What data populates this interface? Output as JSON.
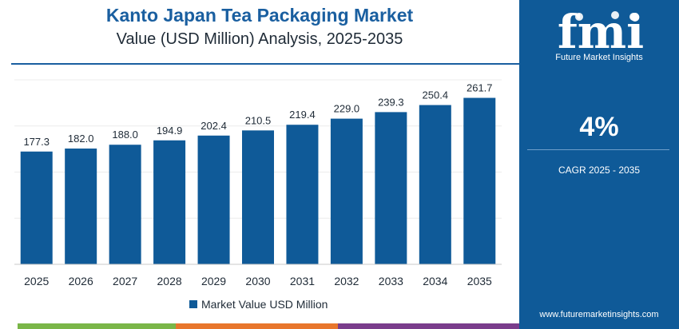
{
  "header": {
    "title": "Kanto Japan Tea Packaging Market",
    "subtitle": "Value (USD Million) Analysis, 2025-2035"
  },
  "sidebar": {
    "logo_text": "fmi",
    "logo_tagline": "Future Market Insights",
    "cagr_value": "4%",
    "cagr_label": "CAGR 2025 - 2035",
    "website": "www.futuremarketinsights.com"
  },
  "colors": {
    "bar": "#0f5a98",
    "title": "#1a5fa0",
    "panel": "#0f5a98",
    "band_green": "#7ab648",
    "band_orange": "#e8762c",
    "band_purple": "#7a3d8c"
  },
  "chart_data": {
    "type": "bar",
    "title": "Kanto Japan Tea Packaging Market",
    "subtitle": "Value (USD Million) Analysis, 2025-2035",
    "categories": [
      "2025",
      "2026",
      "2027",
      "2028",
      "2029",
      "2030",
      "2031",
      "2032",
      "2033",
      "2034",
      "2035"
    ],
    "series": [
      {
        "name": "Market Value USD Million",
        "values": [
          177.3,
          182.0,
          188.0,
          194.9,
          202.4,
          210.5,
          219.4,
          229.0,
          239.3,
          250.4,
          261.7
        ]
      }
    ],
    "value_labels": [
      "177.3",
      "182.0",
      "188.0",
      "194.9",
      "202.4",
      "210.5",
      "219.4",
      "229.0",
      "239.3",
      "250.4",
      "261.7"
    ],
    "ylim": [
      0,
      290
    ],
    "grid": true,
    "legend": "bottom-center"
  }
}
